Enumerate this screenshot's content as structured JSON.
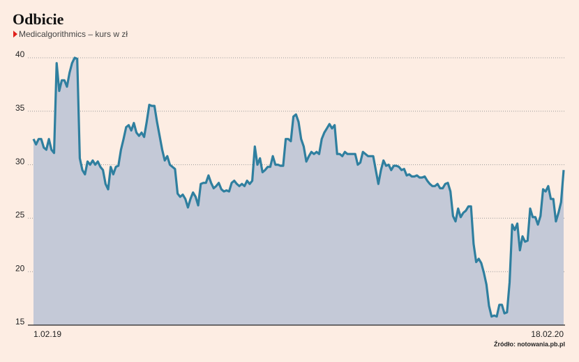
{
  "chart_data": {
    "type": "area",
    "title": "Odbicie",
    "subtitle": "Medicalgorithmics – kurs w zł",
    "source": "Źródło: notowania.pb.pl",
    "line_color": "#2f7f9f",
    "fill_color": "#c4c9d7",
    "grid": true,
    "ylim": [
      15,
      40
    ],
    "yticks": [
      15,
      20,
      25,
      30,
      35,
      40
    ],
    "categories": [
      "1.02.19",
      null,
      null,
      null,
      null,
      null,
      null,
      null,
      null,
      null,
      null,
      null,
      null,
      null,
      null,
      null,
      null,
      null,
      null,
      null,
      null,
      null,
      null,
      null,
      null,
      null,
      null,
      null,
      null,
      null,
      null,
      null,
      null,
      null,
      null,
      null,
      null,
      null,
      null,
      null,
      null,
      null,
      null,
      null,
      null,
      null,
      null,
      null,
      null,
      null,
      null,
      null,
      null,
      null,
      null,
      null,
      null,
      null,
      null,
      null,
      null,
      null,
      null,
      null,
      null,
      null,
      null,
      null,
      null,
      null,
      null,
      null,
      null,
      null,
      null,
      null,
      null,
      null,
      null,
      null,
      null,
      null,
      null,
      null,
      null,
      null,
      null,
      null,
      null,
      null,
      null,
      null,
      null,
      null,
      null,
      null,
      null,
      null,
      null,
      null,
      null,
      null,
      null,
      null,
      null,
      null,
      null,
      null,
      null,
      null,
      null,
      null,
      null,
      null,
      null,
      null,
      null,
      null,
      null,
      null,
      null,
      null,
      null,
      null,
      null,
      null,
      null,
      null,
      null,
      null,
      null,
      null,
      null,
      null,
      null,
      null,
      null,
      null,
      null,
      null,
      null,
      null,
      null,
      null,
      null,
      null,
      null,
      null,
      null,
      null,
      null,
      null,
      null,
      null,
      null,
      null,
      null,
      null,
      null,
      null,
      null,
      null,
      null,
      null,
      null,
      null,
      null,
      null,
      null,
      null,
      null,
      null,
      null,
      null,
      null,
      null,
      null,
      null,
      null,
      null,
      null,
      null,
      null,
      null,
      null,
      null,
      null,
      null,
      null,
      null,
      null,
      null,
      null,
      null,
      null,
      null,
      null,
      null,
      null,
      null,
      null,
      null,
      null,
      null,
      null,
      null,
      "18.02.20"
    ],
    "values": [
      32.4,
      31.9,
      32.4,
      32.4,
      31.6,
      31.4,
      32.4,
      31.4,
      31.1,
      39.5,
      36.9,
      37.9,
      37.9,
      37.3,
      38.6,
      39.5,
      40,
      39.9,
      30.6,
      29.5,
      29.1,
      30.3,
      30.0,
      30.4,
      30.0,
      30.3,
      29.8,
      29.5,
      28.2,
      27.7,
      29.8,
      29.1,
      29.8,
      29.9,
      31.4,
      32.4,
      33.5,
      33.7,
      33.2,
      33.9,
      33.0,
      32.7,
      33.0,
      32.6,
      34.0,
      35.6,
      35.5,
      35.5,
      34.0,
      32.7,
      31.4,
      30.4,
      30.8,
      30.0,
      29.8,
      29.6,
      27.3,
      27.0,
      27.2,
      26.8,
      26.0,
      26.8,
      27.4,
      27.0,
      26.2,
      28.2,
      28.3,
      28.3,
      29.0,
      28.3,
      27.8,
      28.0,
      28.3,
      27.7,
      27.5,
      27.6,
      27.5,
      28.3,
      28.5,
      28.2,
      28.0,
      28.2,
      28.0,
      28.5,
      28.2,
      28.5,
      31.7,
      30.0,
      30.6,
      29.3,
      29.5,
      29.8,
      29.8,
      30.8,
      30.0,
      30.0,
      29.9,
      29.9,
      32.4,
      32.4,
      32.2,
      34.5,
      34.7,
      34.0,
      32.4,
      31.7,
      30.3,
      30.8,
      31.2,
      31.0,
      31.2,
      31.0,
      32.4,
      33.0,
      33.4,
      33.8,
      33.4,
      33.7,
      31.0,
      31.0,
      30.8,
      31.2,
      31.0,
      31.0,
      31.0,
      31.0,
      30.0,
      30.2,
      31.2,
      31.0,
      30.8,
      30.8,
      30.8,
      29.5,
      28.2,
      29.5,
      30.4,
      29.9,
      30.0,
      29.5,
      29.9,
      29.9,
      29.8,
      29.5,
      29.6,
      29.0,
      29.1,
      28.9,
      28.9,
      29.0,
      28.8,
      28.8,
      28.9,
      28.5,
      28.2,
      28.0,
      28.0,
      28.2,
      27.8,
      27.8,
      28.2,
      28.3,
      27.5,
      25.2,
      24.7,
      25.9,
      25.1,
      25.5,
      25.7,
      26.1,
      26.1,
      22.6,
      20.9,
      21.2,
      20.8,
      19.9,
      18.8,
      16.8,
      15.8,
      15.9,
      15.8,
      16.9,
      16.9,
      16.1,
      16.2,
      19.0,
      24.4,
      23.9,
      24.5,
      22.0,
      23.3,
      22.8,
      22.9,
      25.9,
      25.1,
      25.1,
      24.4,
      25.2,
      27.7,
      27.5,
      28.0,
      26.8,
      26.8,
      24.7,
      25.5,
      26.5,
      29.5
    ]
  }
}
